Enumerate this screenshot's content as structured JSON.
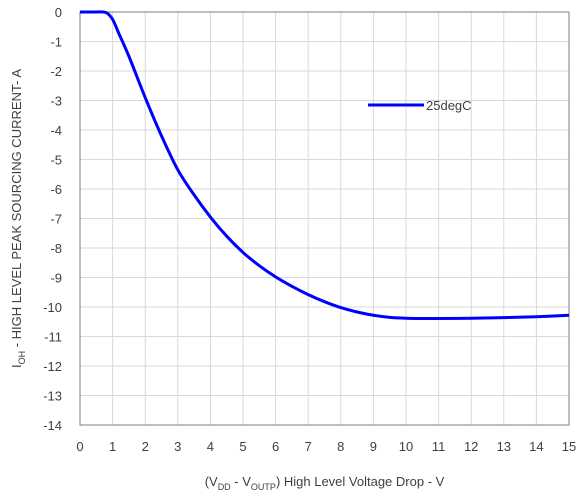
{
  "chart_data": {
    "type": "line",
    "title": "",
    "xlabel": {
      "prefix": "(V",
      "sub1": "DD",
      "middle": " - V",
      "sub2": "OUTP",
      "suffix": ") High Level Voltage Drop - V"
    },
    "ylabel": {
      "prefix": "I",
      "sub": "OH",
      "suffix": " - HIGH LEVEL PEAK SOURCING CURRENT- A"
    },
    "xlim": [
      0,
      15
    ],
    "ylim": [
      -14,
      0
    ],
    "xticks": [
      "0",
      "1",
      "2",
      "3",
      "4",
      "5",
      "6",
      "7",
      "8",
      "9",
      "10",
      "11",
      "12",
      "13",
      "14",
      "15"
    ],
    "yticks": [
      "0",
      "-1",
      "-2",
      "-3",
      "-4",
      "-5",
      "-6",
      "-7",
      "-8",
      "-9",
      "-10",
      "-11",
      "-12",
      "-13",
      "-14"
    ],
    "grid": true,
    "legend_position": "upper-right-inside",
    "colors": {
      "series": "#0000ff",
      "grid": "#d9d9d9",
      "frame": "#7f7f7f"
    },
    "series": [
      {
        "name": "25degC",
        "x": [
          0,
          0.5,
          0.8,
          1.0,
          1.2,
          1.5,
          2.0,
          2.5,
          3.0,
          3.5,
          4.0,
          4.5,
          5.0,
          5.5,
          6.0,
          6.5,
          7.0,
          7.5,
          8.0,
          8.5,
          9.0,
          9.5,
          10.0,
          10.5,
          11.0,
          12.0,
          13.0,
          14.0,
          15.0
        ],
        "y": [
          0,
          0,
          -0.02,
          -0.25,
          -0.75,
          -1.5,
          -2.9,
          -4.2,
          -5.35,
          -6.2,
          -6.95,
          -7.6,
          -8.15,
          -8.6,
          -8.98,
          -9.3,
          -9.58,
          -9.82,
          -10.02,
          -10.17,
          -10.28,
          -10.35,
          -10.38,
          -10.39,
          -10.39,
          -10.38,
          -10.36,
          -10.33,
          -10.28
        ]
      }
    ]
  }
}
